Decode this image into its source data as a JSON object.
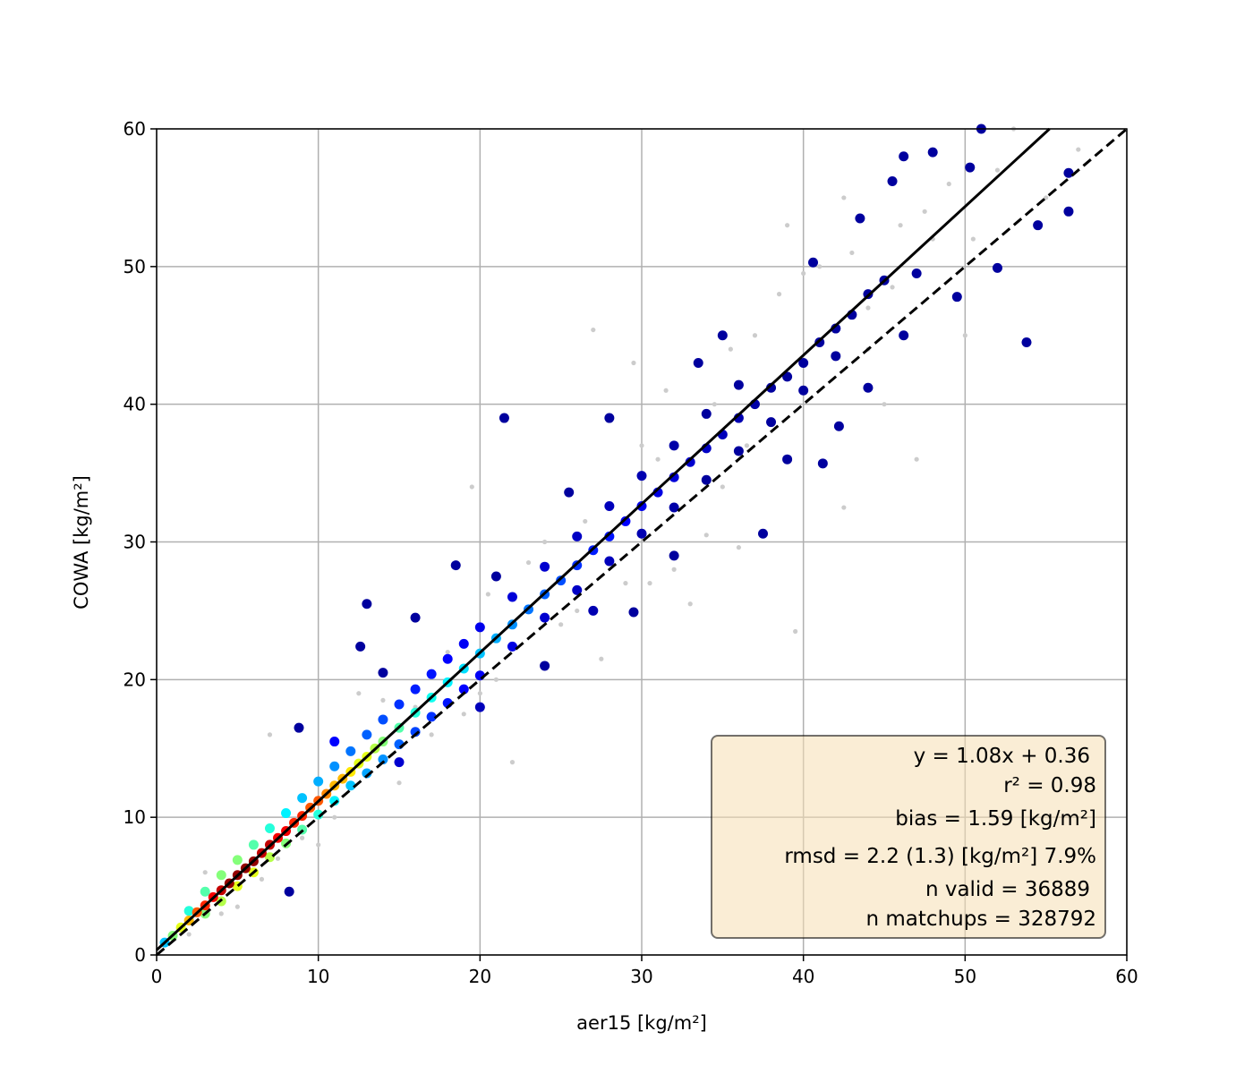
{
  "chart_data": {
    "type": "scatter",
    "title": "",
    "xlabel": "aer15 [kg/m²]",
    "ylabel": "COWA [kg/m²]",
    "xlim": [
      0,
      60
    ],
    "ylim": [
      0,
      60
    ],
    "xticks": [
      "0",
      "10",
      "20",
      "30",
      "40",
      "50",
      "60"
    ],
    "yticks": [
      "0",
      "10",
      "20",
      "30",
      "40",
      "50",
      "60"
    ],
    "grid": true,
    "colormap": "jet",
    "fit_line": {
      "slope": 1.08,
      "intercept": 0.36,
      "style": "solid",
      "color": "#000000"
    },
    "identity_line": {
      "slope": 1,
      "intercept": 0,
      "style": "dashed",
      "color": "#000000"
    },
    "stats": {
      "fit": "y = 1.08x + 0.36",
      "r2": "r² = 0.98",
      "bias": "bias = 1.59 [kg/m²]",
      "rmsd": "rmsd = 2.2 (1.3) [kg/m²] 7.9%",
      "n_valid": "n valid = 36889",
      "n_matchups": "n matchups = 328792"
    },
    "stats_box_color": "#f5deb3",
    "invalid_color": "#cccccc",
    "invalid_points": [
      [
        7,
        16
      ],
      [
        12.5,
        19
      ],
      [
        19.5,
        34
      ],
      [
        20.5,
        26.2
      ],
      [
        27,
        45.4
      ],
      [
        29.5,
        43
      ],
      [
        39,
        53
      ],
      [
        39.5,
        23.5
      ],
      [
        42.5,
        32.5
      ],
      [
        44,
        47
      ],
      [
        50,
        45
      ],
      [
        55,
        55
      ],
      [
        57,
        58.5
      ],
      [
        47,
        36
      ],
      [
        31,
        36
      ],
      [
        34,
        30.5
      ],
      [
        27.5,
        21.5
      ],
      [
        35.5,
        44
      ],
      [
        22,
        14
      ],
      [
        16,
        18
      ],
      [
        10,
        8
      ],
      [
        5,
        3.5
      ],
      [
        3,
        6
      ],
      [
        25,
        24
      ],
      [
        32,
        28
      ],
      [
        15,
        12.5
      ],
      [
        48,
        52
      ],
      [
        52,
        57
      ],
      [
        36,
        29.6
      ],
      [
        33,
        25.5
      ],
      [
        45,
        40
      ],
      [
        38.5,
        48
      ],
      [
        40,
        49.5
      ],
      [
        43,
        51
      ],
      [
        47.5,
        54
      ],
      [
        26.5,
        31.5
      ],
      [
        23,
        28.5
      ],
      [
        18,
        22
      ],
      [
        14,
        18.5
      ],
      [
        9,
        8.5
      ],
      [
        6.5,
        5.5
      ],
      [
        4,
        3
      ],
      [
        11,
        10
      ],
      [
        20,
        19
      ],
      [
        24,
        30
      ],
      [
        30,
        37
      ],
      [
        34.5,
        40
      ],
      [
        37,
        45
      ],
      [
        41,
        50
      ],
      [
        46,
        53
      ],
      [
        49,
        56
      ],
      [
        53,
        60
      ],
      [
        21,
        20
      ],
      [
        29,
        27
      ],
      [
        35,
        34
      ],
      [
        44,
        44
      ],
      [
        13,
        14.5
      ],
      [
        17,
        16
      ],
      [
        42.5,
        55
      ],
      [
        30.5,
        27
      ],
      [
        26,
        25
      ],
      [
        19,
        17.5
      ],
      [
        7.5,
        7
      ],
      [
        2,
        1.5
      ],
      [
        31.5,
        41
      ],
      [
        36.5,
        37
      ],
      [
        45.5,
        48.5
      ],
      [
        50.5,
        52
      ]
    ],
    "points": [
      [
        0.5,
        0.9,
        0.3
      ],
      [
        1,
        1.4,
        0.5
      ],
      [
        1.5,
        2.0,
        0.6
      ],
      [
        2,
        2.5,
        0.7
      ],
      [
        2.5,
        3.1,
        0.8
      ],
      [
        3,
        3.6,
        0.85
      ],
      [
        3.5,
        4.2,
        0.9
      ],
      [
        4,
        4.7,
        0.95
      ],
      [
        4.5,
        5.2,
        1
      ],
      [
        5,
        5.8,
        1
      ],
      [
        5.5,
        6.3,
        1
      ],
      [
        6,
        6.8,
        1
      ],
      [
        6.5,
        7.4,
        0.95
      ],
      [
        7,
        8,
        0.95
      ],
      [
        7.5,
        8.5,
        0.9
      ],
      [
        8,
        9,
        0.9
      ],
      [
        8.5,
        9.6,
        0.85
      ],
      [
        9,
        10.1,
        0.85
      ],
      [
        9.5,
        10.7,
        0.8
      ],
      [
        10,
        11.2,
        0.8
      ],
      [
        10.5,
        11.7,
        0.75
      ],
      [
        11,
        12.3,
        0.7
      ],
      [
        11.5,
        12.8,
        0.7
      ],
      [
        12,
        13.3,
        0.65
      ],
      [
        12.5,
        13.9,
        0.6
      ],
      [
        13,
        14.4,
        0.6
      ],
      [
        13.5,
        15,
        0.55
      ],
      [
        14,
        15.5,
        0.5
      ],
      [
        15,
        16.5,
        0.45
      ],
      [
        16,
        17.6,
        0.4
      ],
      [
        17,
        18.7,
        0.38
      ],
      [
        18,
        19.8,
        0.35
      ],
      [
        19,
        20.8,
        0.33
      ],
      [
        20,
        21.9,
        0.3
      ],
      [
        21,
        23,
        0.28
      ],
      [
        22,
        24,
        0.25
      ],
      [
        23,
        25.1,
        0.22
      ],
      [
        24,
        26.2,
        0.2
      ],
      [
        25,
        27.2,
        0.18
      ],
      [
        26,
        28.3,
        0.15
      ],
      [
        27,
        29.4,
        0.13
      ],
      [
        28,
        30.4,
        0.12
      ],
      [
        29,
        31.5,
        0.1
      ],
      [
        30,
        32.6,
        0.08
      ],
      [
        31,
        33.6,
        0.07
      ],
      [
        32,
        34.7,
        0.06
      ],
      [
        33,
        35.8,
        0.05
      ],
      [
        34,
        36.8,
        0.04
      ],
      [
        35,
        37.8,
        0.03
      ],
      [
        36,
        39,
        0.02
      ],
      [
        37,
        40,
        0.01
      ],
      [
        38,
        41.2,
        0
      ],
      [
        39,
        42,
        0
      ],
      [
        40,
        43,
        0
      ],
      [
        41,
        44.5,
        0
      ],
      [
        42,
        45.5,
        0
      ],
      [
        43,
        46.5,
        0
      ],
      [
        44,
        48,
        0
      ],
      [
        45,
        49,
        0
      ],
      [
        2,
        3.2,
        0.4
      ],
      [
        3,
        4.6,
        0.45
      ],
      [
        4,
        5.8,
        0.5
      ],
      [
        5,
        6.9,
        0.5
      ],
      [
        6,
        8.0,
        0.45
      ],
      [
        7,
        9.2,
        0.4
      ],
      [
        8,
        10.3,
        0.35
      ],
      [
        9,
        11.4,
        0.3
      ],
      [
        10,
        12.6,
        0.28
      ],
      [
        11,
        13.7,
        0.25
      ],
      [
        12,
        14.8,
        0.22
      ],
      [
        13,
        16,
        0.2
      ],
      [
        14,
        17.1,
        0.18
      ],
      [
        15,
        18.2,
        0.15
      ],
      [
        16,
        19.3,
        0.13
      ],
      [
        17,
        20.4,
        0.12
      ],
      [
        18,
        21.5,
        0.1
      ],
      [
        19,
        22.6,
        0.09
      ],
      [
        20,
        23.8,
        0.08
      ],
      [
        22,
        26,
        0.06
      ],
      [
        24,
        28.2,
        0.05
      ],
      [
        26,
        30.4,
        0.04
      ],
      [
        28,
        32.6,
        0.03
      ],
      [
        30,
        34.8,
        0.02
      ],
      [
        32,
        37,
        0.01
      ],
      [
        34,
        39.3,
        0
      ],
      [
        36,
        41.4,
        0
      ],
      [
        3,
        3.0,
        0.5
      ],
      [
        4,
        3.9,
        0.55
      ],
      [
        5,
        5.0,
        0.6
      ],
      [
        6,
        6.0,
        0.6
      ],
      [
        7,
        7.1,
        0.55
      ],
      [
        8,
        8.1,
        0.5
      ],
      [
        9,
        9.1,
        0.45
      ],
      [
        10,
        10.2,
        0.4
      ],
      [
        11,
        11.2,
        0.35
      ],
      [
        12,
        12.3,
        0.3
      ],
      [
        13,
        13.2,
        0.27
      ],
      [
        14,
        14.2,
        0.25
      ],
      [
        15,
        15.3,
        0.2
      ],
      [
        16,
        16.2,
        0.17
      ],
      [
        17,
        17.3,
        0.15
      ],
      [
        18,
        18.3,
        0.12
      ],
      [
        19,
        19.3,
        0.1
      ],
      [
        20,
        20.3,
        0.09
      ],
      [
        22,
        22.4,
        0.07
      ],
      [
        24,
        24.5,
        0.05
      ],
      [
        26,
        26.5,
        0.04
      ],
      [
        28,
        28.6,
        0.03
      ],
      [
        30,
        30.6,
        0.02
      ],
      [
        32,
        32.5,
        0.01
      ],
      [
        34,
        34.5,
        0
      ],
      [
        36,
        36.6,
        0
      ],
      [
        38,
        38.7,
        0
      ],
      [
        40,
        41,
        0
      ],
      [
        42,
        43.5,
        0
      ],
      [
        21.5,
        39,
        0
      ],
      [
        13,
        25.5,
        0
      ],
      [
        8.8,
        16.5,
        0
      ],
      [
        8.2,
        4.6,
        0
      ],
      [
        37.5,
        30.6,
        0
      ],
      [
        53.8,
        44.5,
        0
      ],
      [
        56.4,
        54,
        0
      ],
      [
        56.4,
        56.8,
        0
      ],
      [
        54.5,
        53,
        0
      ],
      [
        51,
        60,
        0
      ],
      [
        50.3,
        57.2,
        0
      ],
      [
        48,
        58.3,
        0
      ],
      [
        45.5,
        56.2,
        0
      ],
      [
        46.2,
        58,
        0
      ],
      [
        52,
        49.9,
        0
      ],
      [
        42.2,
        38.4,
        0
      ],
      [
        41.2,
        35.7,
        0
      ],
      [
        12.6,
        22.4,
        0
      ],
      [
        25.5,
        33.6,
        0
      ],
      [
        28,
        39,
        0
      ],
      [
        33.5,
        43,
        0
      ],
      [
        18.5,
        28.3,
        0
      ],
      [
        16,
        24.5,
        0
      ],
      [
        44,
        41.2,
        0
      ],
      [
        49.5,
        47.8,
        0
      ],
      [
        46.2,
        45,
        0
      ],
      [
        40.6,
        50.3,
        0
      ],
      [
        35,
        45,
        0
      ],
      [
        29.5,
        24.9,
        0
      ],
      [
        24,
        21,
        0
      ],
      [
        15,
        14,
        0.05
      ],
      [
        20,
        18,
        0.03
      ],
      [
        27,
        25,
        0.02
      ],
      [
        43.5,
        53.5,
        0
      ],
      [
        47,
        49.5,
        0
      ],
      [
        39,
        36,
        0
      ],
      [
        32,
        29,
        0
      ],
      [
        21,
        27.5,
        0
      ],
      [
        14,
        20.5,
        0
      ],
      [
        11,
        15.5,
        0.1
      ]
    ]
  }
}
